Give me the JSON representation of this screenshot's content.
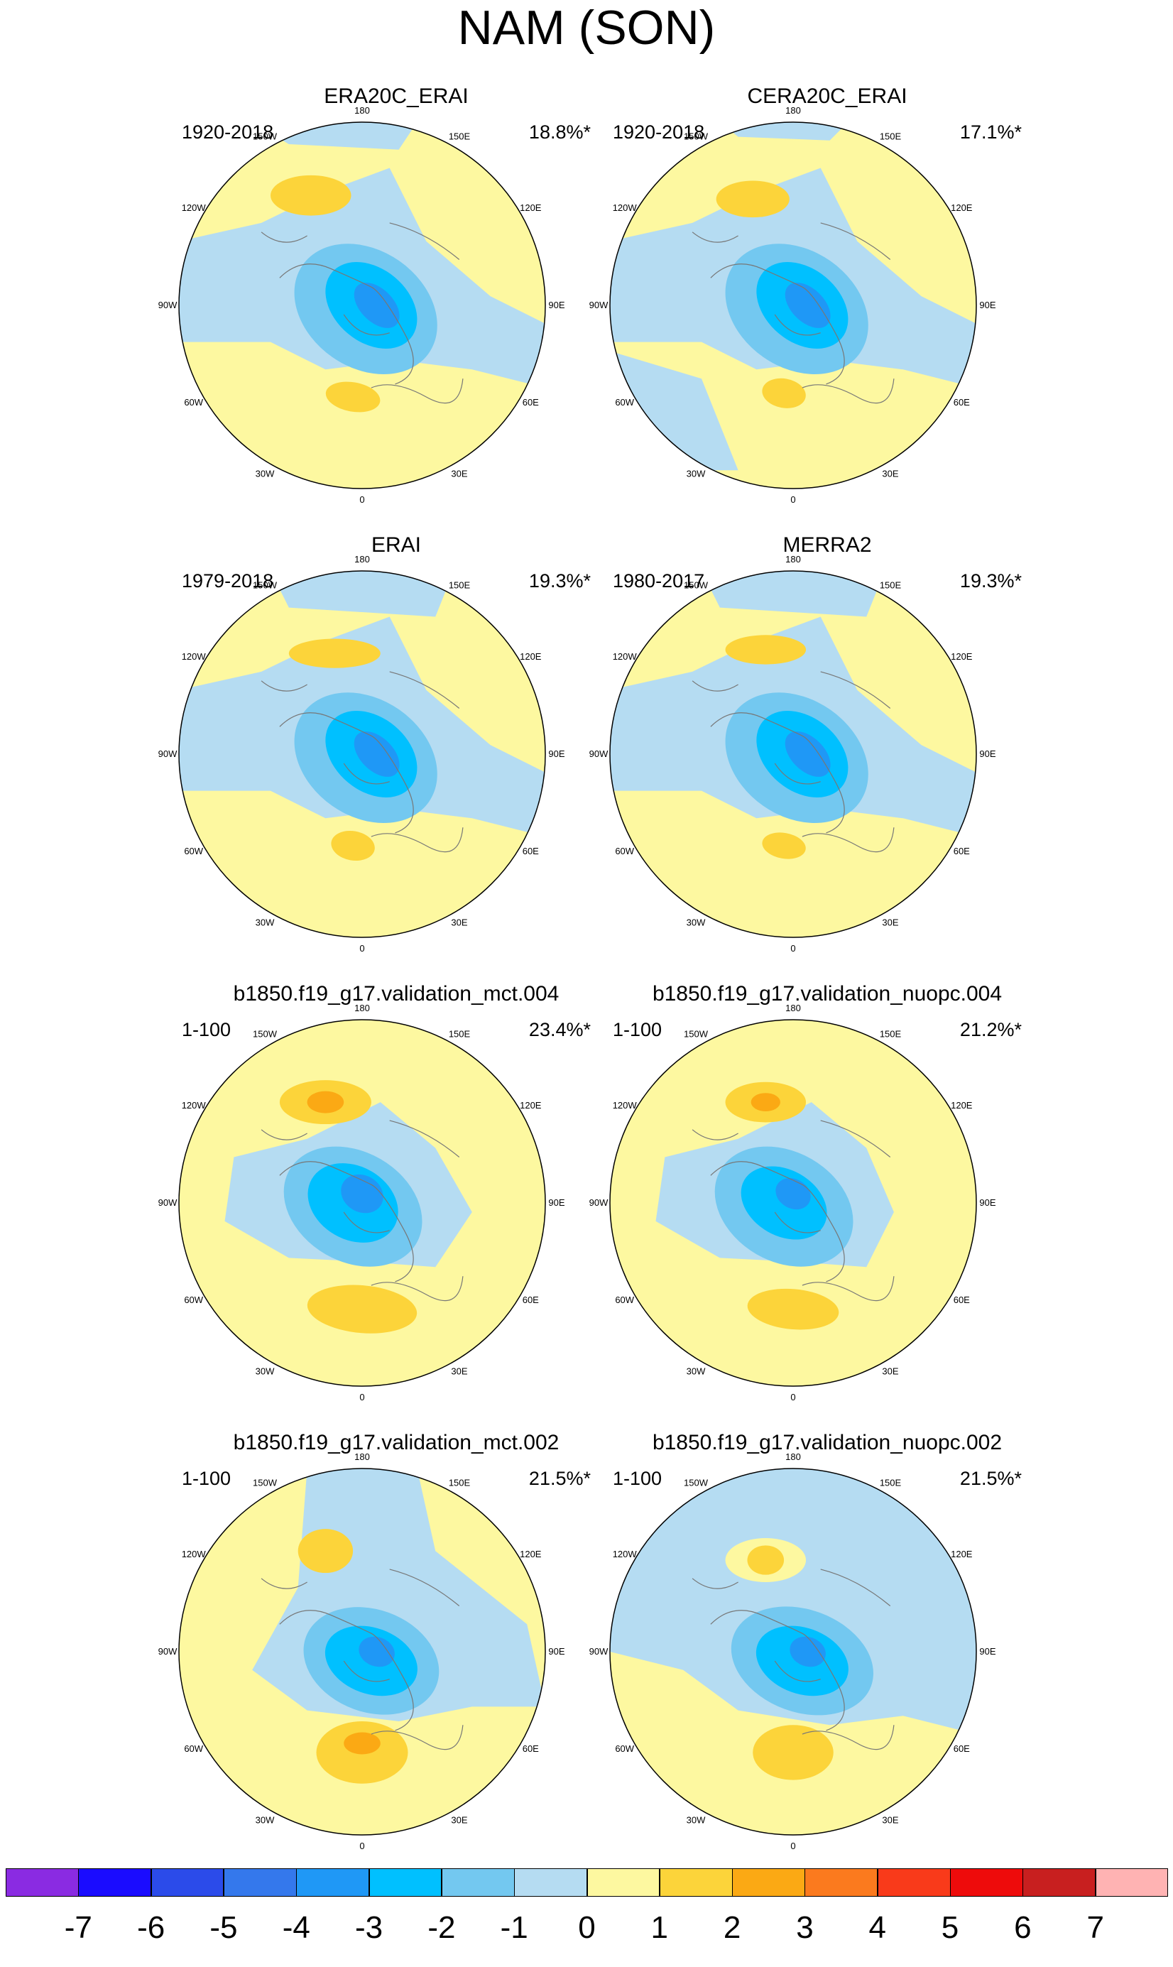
{
  "title": "NAM (SON)",
  "longitude_labels": [
    "180",
    "150E",
    "120E",
    "90E",
    "60E",
    "30E",
    "0",
    "30W",
    "60W",
    "90W",
    "120W",
    "150W"
  ],
  "panels": [
    {
      "title": "ERA20C_ERAI",
      "period": "1920-2018",
      "variance": "18.8%*"
    },
    {
      "title": "CERA20C_ERAI",
      "period": "1920-2018",
      "variance": "17.1%*"
    },
    {
      "title": "ERAI",
      "period": "1979-2018",
      "variance": "19.3%*"
    },
    {
      "title": "MERRA2",
      "period": "1980-2017",
      "variance": "19.3%*"
    },
    {
      "title": "b1850.f19_g17.validation_mct.004",
      "period": "1-100",
      "variance": "23.4%*"
    },
    {
      "title": "b1850.f19_g17.validation_nuopc.004",
      "period": "1-100",
      "variance": "21.2%*"
    },
    {
      "title": "b1850.f19_g17.validation_mct.002",
      "period": "1-100",
      "variance": "21.5%*"
    },
    {
      "title": "b1850.f19_g17.validation_nuopc.002",
      "period": "1-100",
      "variance": "21.5%*"
    }
  ],
  "colorbar": {
    "labels": [
      "-7",
      "-6",
      "-5",
      "-4",
      "-3",
      "-2",
      "-1",
      "0",
      "1",
      "2",
      "3",
      "4",
      "5",
      "6",
      "7"
    ],
    "colors": [
      "#8a2be2",
      "#1a0cff",
      "#2b4bea",
      "#3478ec",
      "#1f98f6",
      "#00c0ff",
      "#73c8f0",
      "#b5dcf2",
      "#fdf8a0",
      "#fcd43a",
      "#fba914",
      "#fb7a1e",
      "#f93a1a",
      "#ee0b0b",
      "#c81f1f",
      "#ffb3b3"
    ]
  },
  "chart_data": {
    "type": "polar-stereographic contour maps",
    "title": "NAM (SON)",
    "contour_levels": [
      -7,
      -6,
      -5,
      -4,
      -3,
      -2,
      -1,
      0,
      1,
      2,
      3,
      4,
      5,
      6,
      7
    ],
    "panels": [
      {
        "name": "ERA20C_ERAI",
        "period": "1920-2018",
        "explained_variance": "18.8%*"
      },
      {
        "name": "CERA20C_ERAI",
        "period": "1920-2018",
        "explained_variance": "17.1%*"
      },
      {
        "name": "ERAI",
        "period": "1979-2018",
        "explained_variance": "19.3%*"
      },
      {
        "name": "MERRA2",
        "period": "1980-2017",
        "explained_variance": "19.3%*"
      },
      {
        "name": "b1850.f19_g17.validation_mct.004",
        "period": "1-100",
        "explained_variance": "23.4%*"
      },
      {
        "name": "b1850.f19_g17.validation_nuopc.004",
        "period": "1-100",
        "explained_variance": "21.2%*"
      },
      {
        "name": "b1850.f19_g17.validation_mct.002",
        "period": "1-100",
        "explained_variance": "21.5%*"
      },
      {
        "name": "b1850.f19_g17.validation_nuopc.002",
        "period": "1-100",
        "explained_variance": "21.5%*"
      }
    ]
  }
}
